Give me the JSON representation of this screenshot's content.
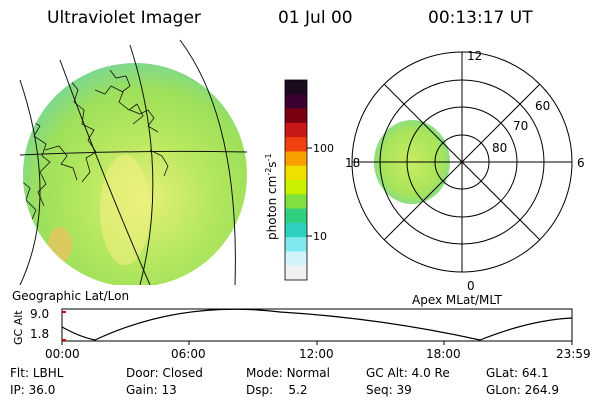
{
  "header": {
    "instrument": "Ultraviolet Imager",
    "date": "01 Jul 00",
    "time": "00:13:17 UT"
  },
  "geo_panel": {
    "label": "Geographic Lat/Lon"
  },
  "polar_panel": {
    "label": "Apex MLat/MLT",
    "mlt_labels": [
      "12",
      "18",
      "6",
      "0"
    ],
    "lat_labels": [
      "60",
      "70",
      "80"
    ]
  },
  "colorbar": {
    "unit_label": "photon cm",
    "unit_sup1": "-2",
    "unit_mid": "s",
    "unit_sup2": "-1",
    "ticks": [
      "100",
      "10"
    ],
    "colors": [
      "#1a0a1e",
      "#3a0030",
      "#7a0010",
      "#c81818",
      "#f04010",
      "#f8a000",
      "#f0e000",
      "#c8f000",
      "#80e040",
      "#30d080",
      "#30d0c0",
      "#80e8f0",
      "#d0f4f8",
      "#f0f0f0"
    ]
  },
  "altitude_plot": {
    "ylabel": "GC Alt",
    "yticks": [
      "9.0",
      "1.8"
    ],
    "xticks": [
      "00:00",
      "06:00",
      "12:00",
      "18:00",
      "23:59"
    ]
  },
  "info": {
    "row1": [
      {
        "key": "Flt:",
        "value": "LBHL"
      },
      {
        "key": "Door:",
        "value": "Closed"
      },
      {
        "key": "Mode:",
        "value": "Normal"
      },
      {
        "key": "GC Alt:",
        "value": "4.0 Re"
      },
      {
        "key": "GLat:",
        "value": "64.1"
      }
    ],
    "row2": [
      {
        "key": "IP:",
        "value": "36.0"
      },
      {
        "key": "Gain:",
        "value": "13"
      },
      {
        "key": "Dsp:",
        "value": "5.2"
      },
      {
        "key": "Seq:",
        "value": "39"
      },
      {
        "key": "GLon:",
        "value": "264.9"
      }
    ]
  }
}
